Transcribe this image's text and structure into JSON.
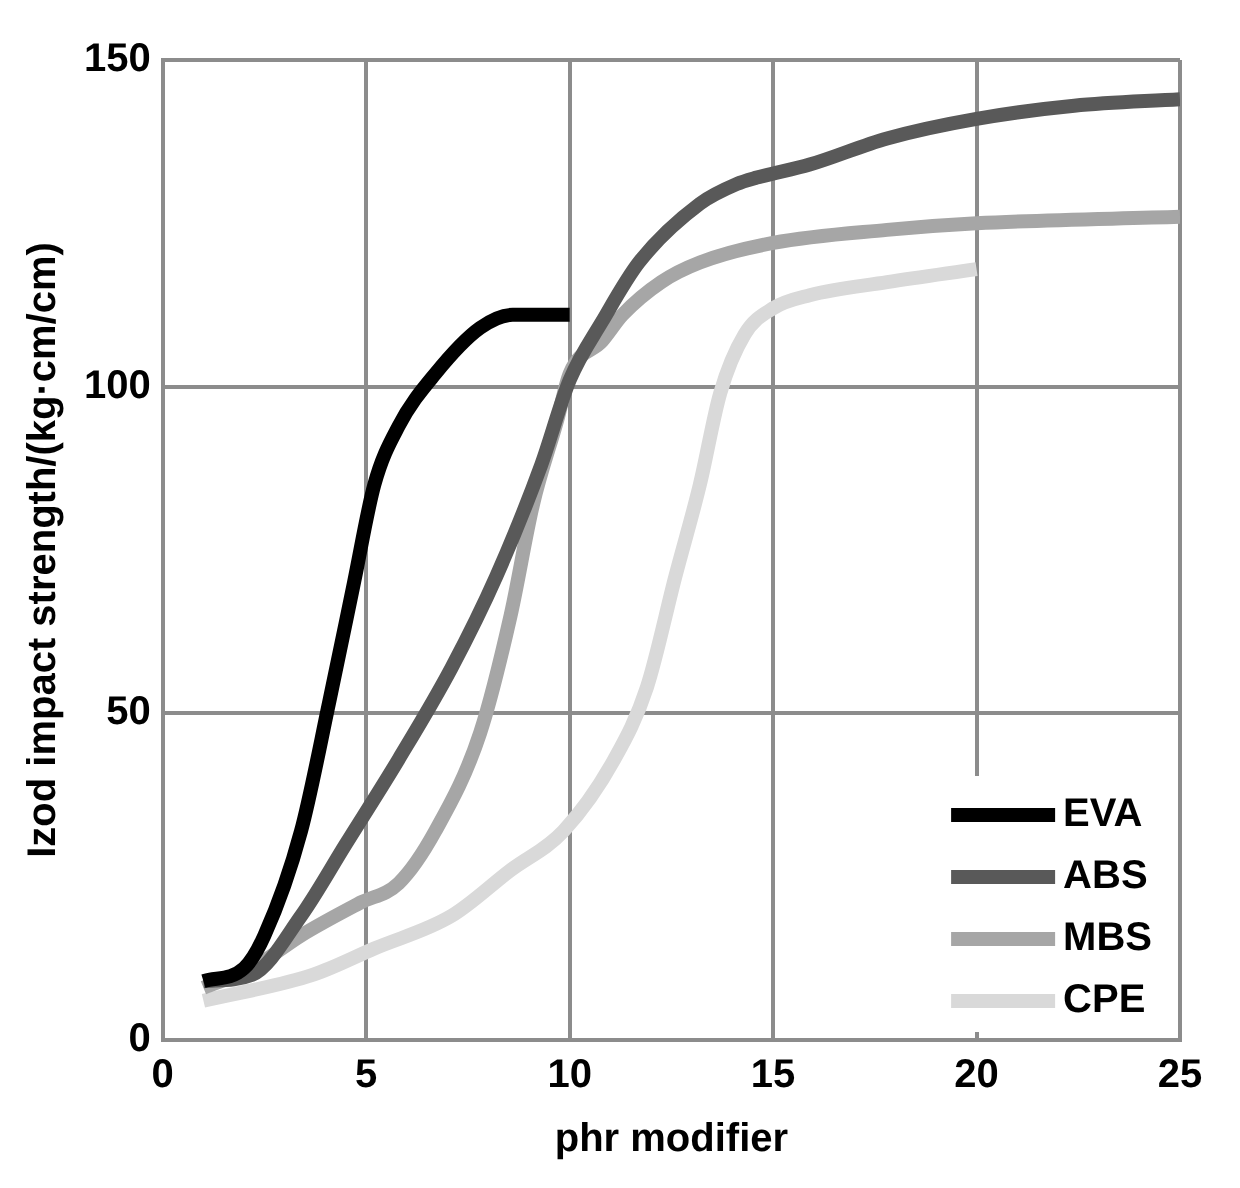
{
  "chart_data": {
    "type": "line",
    "xlabel": "phr modifier",
    "ylabel": "Izod impact strength/(kg·cm/cm)",
    "xlim": [
      0,
      25
    ],
    "xticks": [
      0,
      5,
      10,
      15,
      20,
      25
    ],
    "ylim": [
      0,
      150
    ],
    "yticks": [
      0,
      50,
      100,
      150
    ],
    "grid": true,
    "legend": "bottom right",
    "marker": "none",
    "line_style": "solid",
    "series": [
      {
        "name": "EVA",
        "color": "#000000",
        "x": [
          1,
          2,
          2.5,
          3.4,
          4.1,
          4.7,
          5.2,
          5.8,
          6.7,
          7.8,
          8.6,
          10
        ],
        "values": [
          9,
          11,
          16,
          32,
          52,
          70,
          85,
          94,
          102,
          109,
          111,
          111
        ]
      },
      {
        "name": "ABS",
        "color": "#595959",
        "x": [
          1,
          2.2,
          3.4,
          4.5,
          5.8,
          7.1,
          8.2,
          9.3,
          10,
          10.8,
          11.7,
          13.2,
          14.1,
          14.6,
          15.9,
          17.8,
          20,
          22.4,
          25
        ],
        "values": [
          9,
          10,
          19,
          30,
          43,
          57,
          71,
          88,
          101,
          110,
          119,
          128,
          131,
          132,
          134,
          138,
          141,
          143,
          144
        ]
      },
      {
        "name": "MBS",
        "color": "#a6a6a6",
        "x": [
          1,
          2.2,
          3.4,
          4.85,
          5.8,
          6.7,
          7.8,
          8.55,
          9.1,
          9.7,
          10,
          10.8,
          11.3,
          12.25,
          13.2,
          15,
          17.8,
          20,
          25
        ],
        "values": [
          8,
          11,
          16,
          21,
          24,
          32,
          47,
          65,
          82,
          95,
          102,
          107,
          111,
          116,
          119,
          122,
          124,
          125,
          126
        ]
      },
      {
        "name": "CPE",
        "color": "#d9d9d9",
        "x": [
          1,
          3.7,
          5.2,
          7.1,
          8.55,
          9.85,
          11.1,
          11.9,
          12.6,
          13.2,
          13.7,
          14.3,
          15,
          15.9,
          17.8,
          20
        ],
        "values": [
          6,
          10,
          14,
          19,
          26,
          32,
          43,
          54,
          71,
          85,
          99,
          108,
          112,
          114,
          116,
          118
        ]
      }
    ]
  }
}
